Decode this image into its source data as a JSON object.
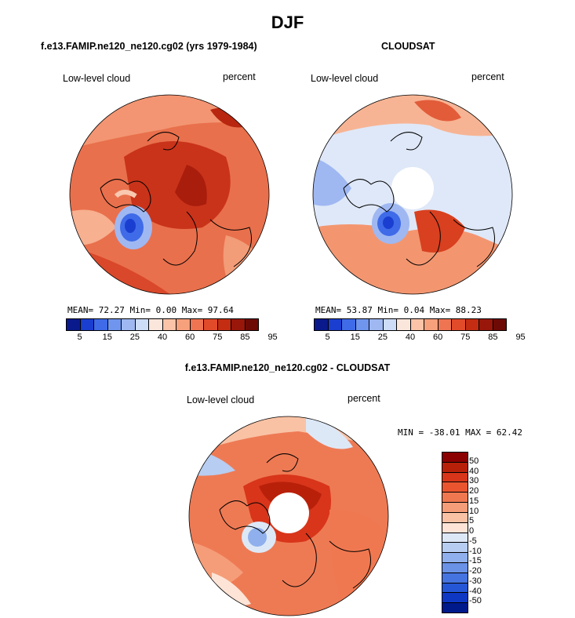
{
  "title": "DJF",
  "panels": {
    "model": {
      "title": "f.e13.FAMIP.ne120_ne120.cg02 (yrs 1979-1984)",
      "left_label": "Low-level cloud",
      "right_label": "percent",
      "stats": "MEAN=  72.27  Min=   0.00  Max=  97.64"
    },
    "obs": {
      "title": "CLOUDSAT",
      "left_label": "Low-level cloud",
      "right_label": "percent",
      "stats": "MEAN=  53.87  Min=   0.04  Max=  88.23"
    },
    "diff": {
      "title": "f.e13.FAMIP.ne120_ne120.cg02 - CLOUDSAT",
      "left_label": "Low-level cloud",
      "right_label": "percent",
      "stats": "MIN = -38.01 MAX =  62.42"
    }
  },
  "colorbar_abs": {
    "colors": [
      "#0a1a8c",
      "#1a3ed0",
      "#3f6be8",
      "#6f95ee",
      "#9fb8f2",
      "#cddcf7",
      "#fbe6dc",
      "#fbc4a8",
      "#f7a07c",
      "#ef7452",
      "#e24b2a",
      "#c42d12",
      "#98170a",
      "#6e0a05"
    ],
    "tick_labels": [
      "5",
      "15",
      "25",
      "40",
      "60",
      "75",
      "85",
      "95"
    ]
  },
  "colorbar_diff": {
    "colors": [
      "#8b0000",
      "#b8200a",
      "#d8351a",
      "#ea5530",
      "#f07850",
      "#f59d78",
      "#f9c2a5",
      "#fde4d6",
      "#dde8f7",
      "#b7cdf1",
      "#8fb0ec",
      "#6a92e6",
      "#4574e0",
      "#2456d6",
      "#0e38c4",
      "#001a8c"
    ],
    "tick_labels": [
      "50",
      "40",
      "30",
      "20",
      "15",
      "10",
      "5",
      "0",
      "-5",
      "-10",
      "-15",
      "-20",
      "-30",
      "-40",
      "-50"
    ]
  }
}
